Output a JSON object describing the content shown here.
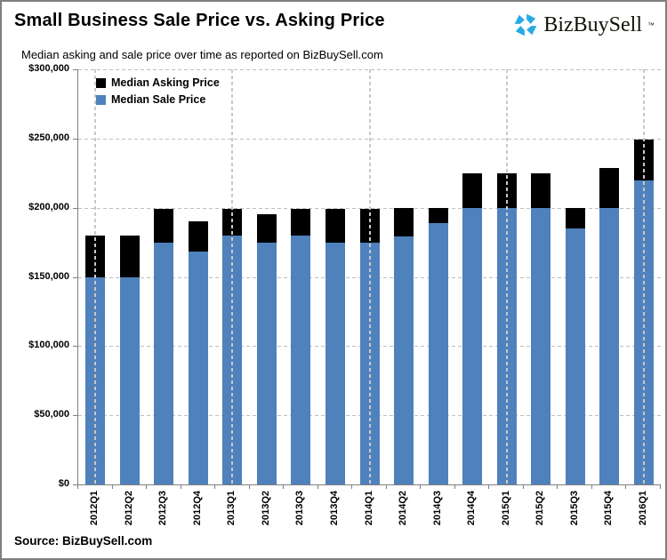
{
  "header": {
    "title": "Small Business Sale Price vs. Asking Price",
    "subtitle": "Median asking and sale price over time as reported on BizBuySell.com",
    "logo": {
      "text": "BizBuySell",
      "trademark": "™",
      "icon": "bizbuysell-pinwheel-icon",
      "icon_color": "#29ABE2",
      "text_color": "#14110b"
    }
  },
  "footer": {
    "source": "Source: BizBuySell.com"
  },
  "chart_data": {
    "type": "bar",
    "subtype": "overlapped-columns-asking-behind-sale",
    "title": "Small Business Sale Price vs. Asking Price",
    "xlabel": "",
    "ylabel": "",
    "categories": [
      "2012Q1",
      "2012Q2",
      "2012Q3",
      "2012Q4",
      "2013Q1",
      "2013Q2",
      "2013Q3",
      "2013Q4",
      "2014Q1",
      "2014Q2",
      "2014Q3",
      "2014Q4",
      "2015Q1",
      "2015Q2",
      "2015Q3",
      "2015Q4",
      "2016Q1"
    ],
    "series": [
      {
        "name": "Median Asking Price",
        "color": "#000000",
        "values": [
          180000,
          180000,
          199000,
          190000,
          199000,
          195000,
          199000,
          199000,
          199000,
          200000,
          200000,
          225000,
          225000,
          225000,
          200000,
          229000,
          249000
        ]
      },
      {
        "name": "Median Sale Price",
        "color": "#4F81BD",
        "values": [
          150000,
          150000,
          175000,
          168000,
          180000,
          175000,
          180000,
          175000,
          175000,
          179000,
          189000,
          200000,
          200000,
          200000,
          185000,
          200000,
          220000
        ]
      }
    ],
    "ylim": [
      0,
      300000
    ],
    "y_tick_interval": 50000,
    "y_tick_labels": [
      "$0",
      "$50,000",
      "$100,000",
      "$150,000",
      "$200,000",
      "$250,000",
      "$300,000"
    ],
    "legend_position": "top-left-inside",
    "grid": {
      "horizontal": "dashed-every-50000",
      "vertical": "dashed-at-each-Q1-category",
      "color": "#BFBFBF"
    },
    "axis_color": "#808080"
  }
}
